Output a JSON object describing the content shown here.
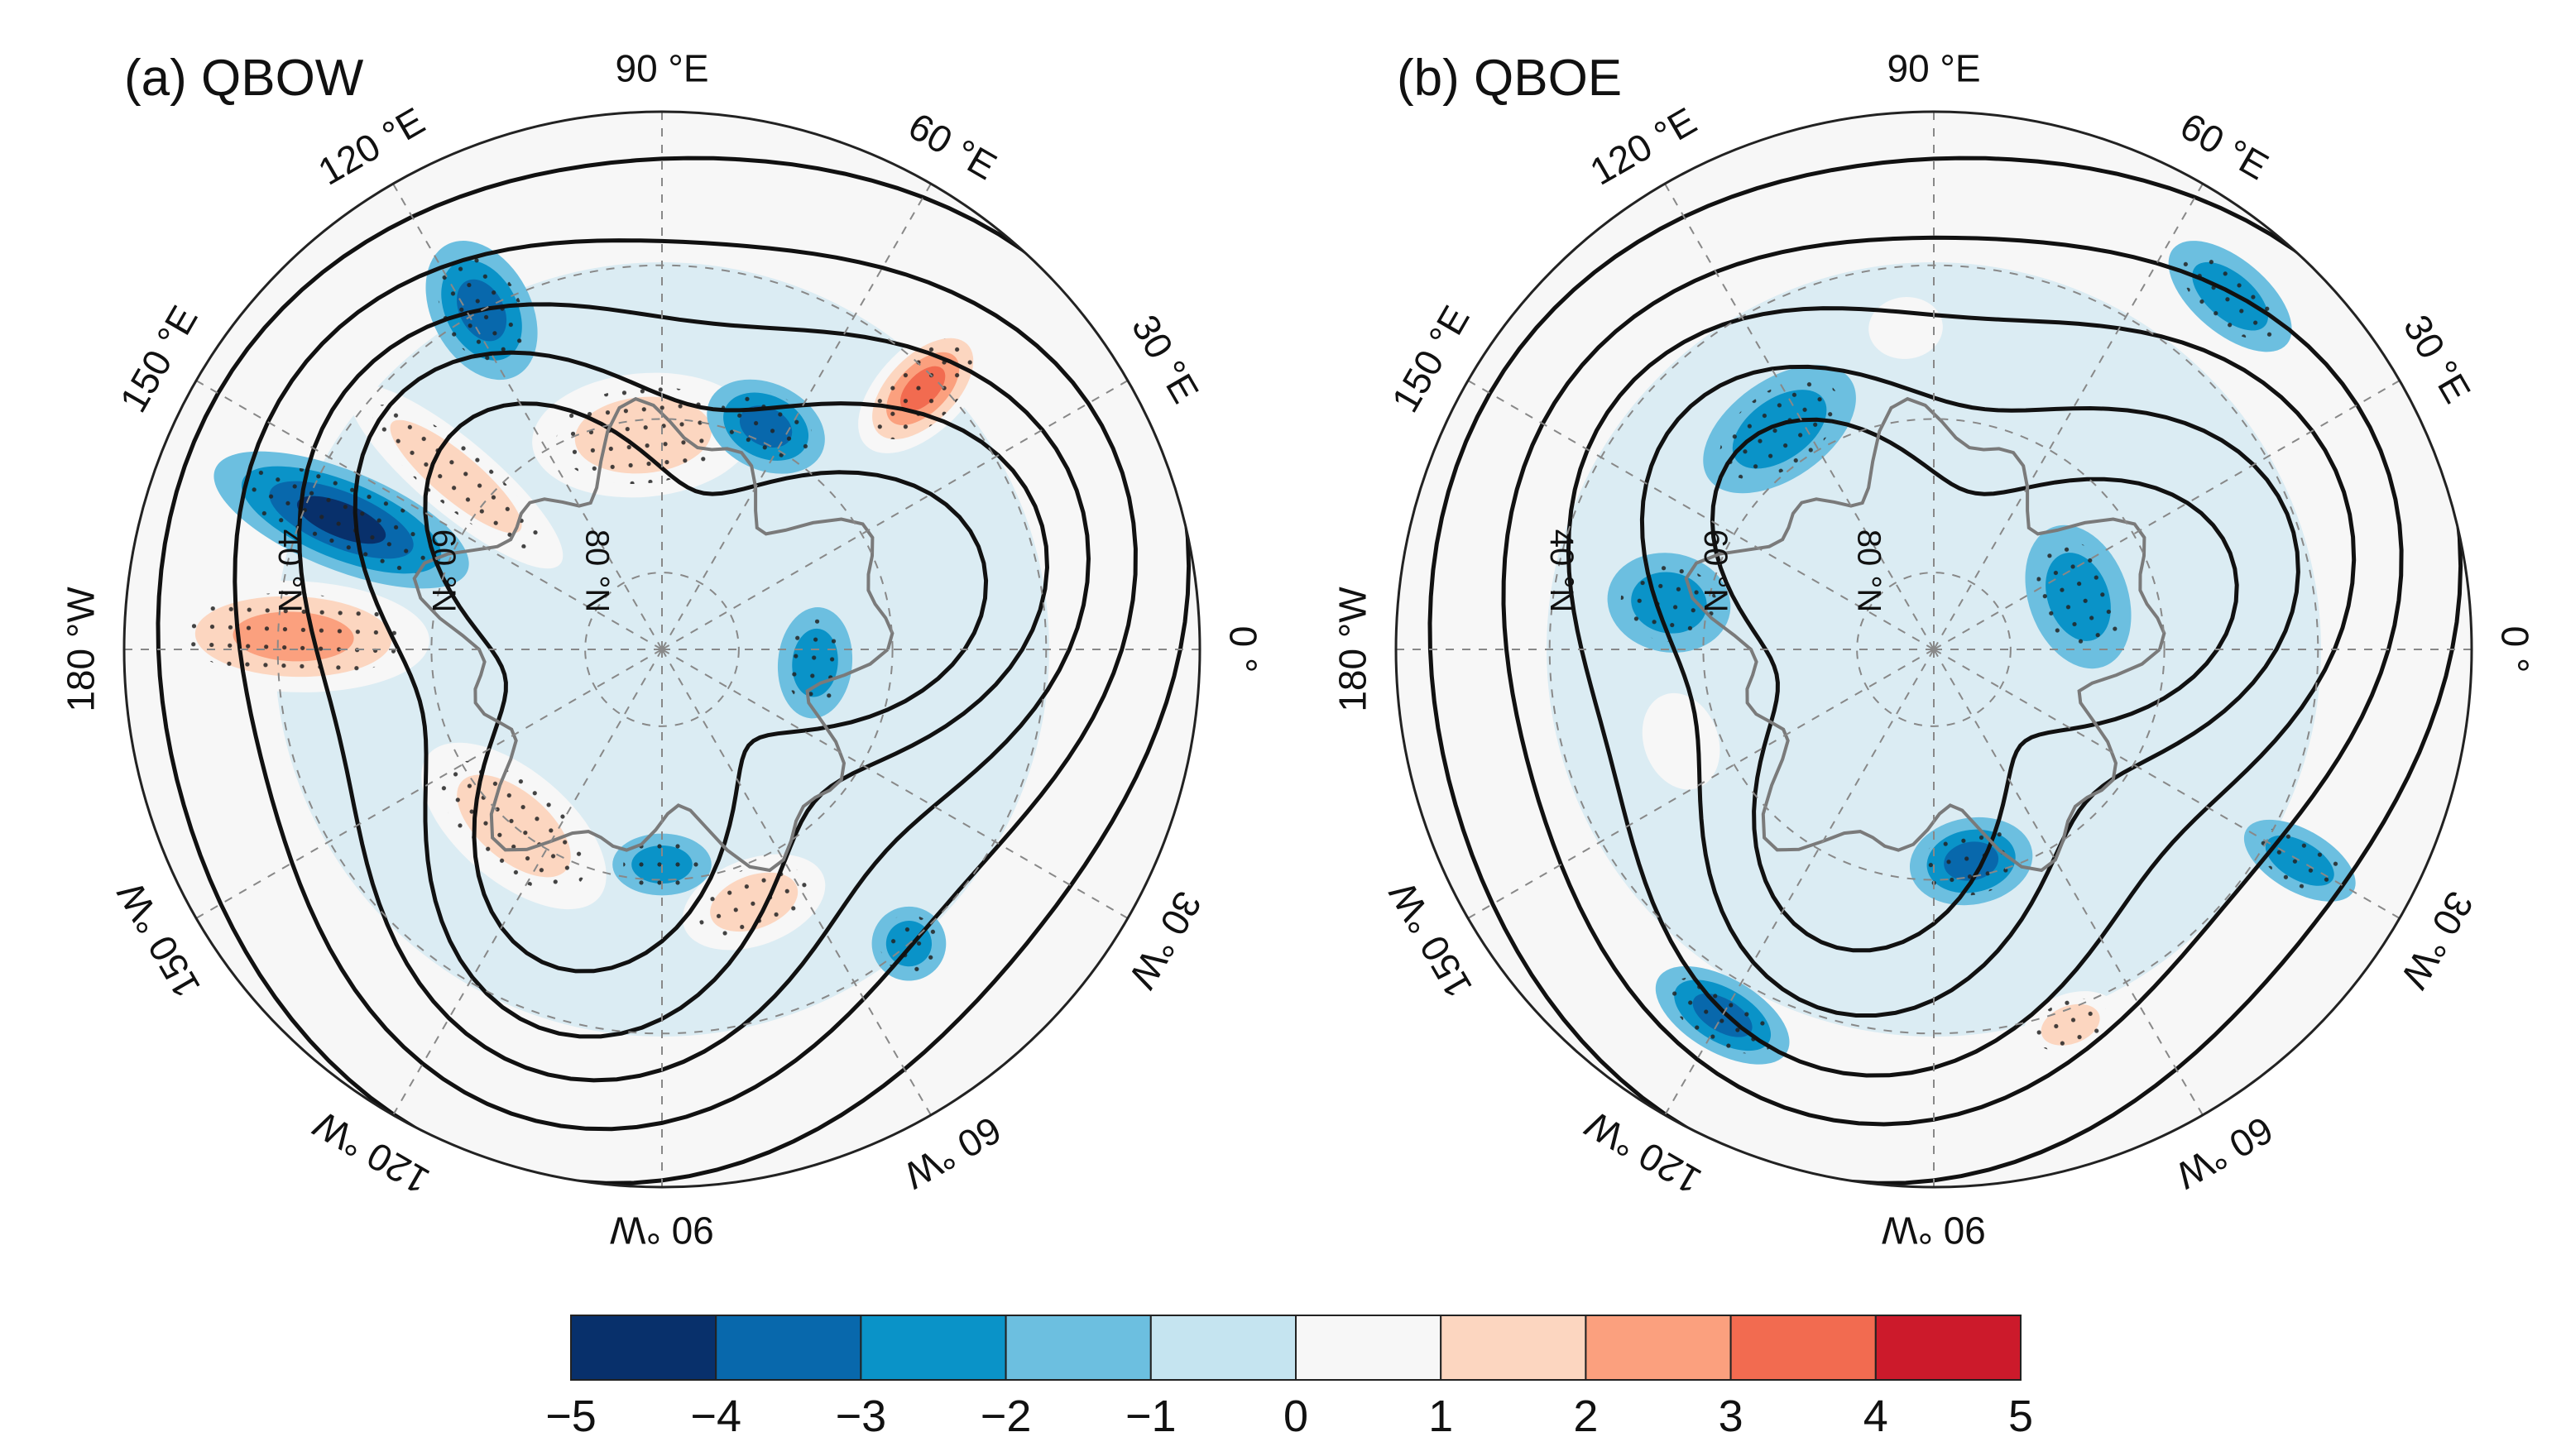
{
  "panels": [
    {
      "title": "(a) QBOW",
      "lon_labels": [
        "90 °E",
        "60 °E",
        "30 °E",
        "0 °",
        "30 °W",
        "60 °W",
        "90 °W",
        "120 °W",
        "150 °W",
        "180 °W",
        "150 °E",
        "120 °E"
      ],
      "lat_labels": [
        "40 °N",
        "60 °N",
        "80 °N"
      ],
      "anomalies": [
        {
          "lon": 178,
          "lat": 42,
          "value": 3,
          "rx": 0.09,
          "ry": 0.22
        },
        {
          "lon": 158,
          "lat": 45,
          "value": -4,
          "rx": 0.08,
          "ry": 0.22
        },
        {
          "lon": 118,
          "lat": 40,
          "value": -3,
          "rx": 0.08,
          "ry": 0.12
        },
        {
          "lon": 140,
          "lat": 55,
          "value": 2,
          "rx": 0.06,
          "ry": 0.22
        },
        {
          "lon": 95,
          "lat": 62,
          "value": 2,
          "rx": 0.18,
          "ry": 0.1
        },
        {
          "lon": 45,
          "lat": 42,
          "value": 4,
          "rx": 0.07,
          "ry": 0.13
        },
        {
          "lon": 65,
          "lat": 58,
          "value": -3,
          "rx": 0.1,
          "ry": 0.07
        },
        {
          "lon": 355,
          "lat": 70,
          "value": -2,
          "rx": 0.09,
          "ry": 0.06
        },
        {
          "lon": 290,
          "lat": 55,
          "value": 2,
          "rx": 0.12,
          "ry": 0.07
        },
        {
          "lon": 230,
          "lat": 60,
          "value": 2,
          "rx": 0.18,
          "ry": 0.09
        },
        {
          "lon": 270,
          "lat": 62,
          "value": -2,
          "rx": 0.08,
          "ry": 0.05
        },
        {
          "lon": 310,
          "lat": 40,
          "value": -2,
          "rx": 0.06,
          "ry": 0.06
        },
        {
          "lon": 100,
          "lat": 30,
          "value": 1,
          "rx": 0.1,
          "ry": 0.08
        }
      ],
      "contours": [
        {
          "a": 0.95,
          "b": 0.04,
          "phase": 20
        },
        {
          "a": 0.82,
          "b": 0.07,
          "phase": 30
        },
        {
          "a": 0.7,
          "b": 0.1,
          "phase": 35
        },
        {
          "a": 0.58,
          "b": 0.14,
          "phase": 40
        },
        {
          "a": 0.44,
          "b": 0.16,
          "phase": 50
        }
      ]
    },
    {
      "title": "(b) QBOE",
      "lon_labels": [
        "90 °E",
        "60 °E",
        "30 °E",
        "0 °",
        "30 °W",
        "60 °W",
        "90 °W",
        "120 °W",
        "150 °W",
        "180 °W",
        "150 °E",
        "120 °E"
      ],
      "lat_labels": [
        "40 °N",
        "60 °N",
        "80 °N"
      ],
      "anomalies": [
        {
          "lon": 50,
          "lat": 30,
          "value": -2,
          "rx": 0.12,
          "ry": 0.06
        },
        {
          "lon": 125,
          "lat": 55,
          "value": -2,
          "rx": 0.14,
          "ry": 0.08
        },
        {
          "lon": 95,
          "lat": 48,
          "value": 1,
          "rx": 0.06,
          "ry": 0.05
        },
        {
          "lon": 20,
          "lat": 70,
          "value": -2,
          "rx": 0.12,
          "ry": 0.08
        },
        {
          "lon": 330,
          "lat": 35,
          "value": -2,
          "rx": 0.05,
          "ry": 0.1
        },
        {
          "lon": 280,
          "lat": 62,
          "value": -3,
          "rx": 0.1,
          "ry": 0.07
        },
        {
          "lon": 240,
          "lat": 35,
          "value": -3,
          "rx": 0.12,
          "ry": 0.06
        },
        {
          "lon": 290,
          "lat": 38,
          "value": 2,
          "rx": 0.08,
          "ry": 0.05
        },
        {
          "lon": 200,
          "lat": 55,
          "value": 1,
          "rx": 0.08,
          "ry": 0.06
        },
        {
          "lon": 170,
          "lat": 55,
          "value": -2,
          "rx": 0.08,
          "ry": 0.1
        }
      ],
      "contours": [
        {
          "a": 0.95,
          "b": 0.04,
          "phase": 20
        },
        {
          "a": 0.82,
          "b": 0.06,
          "phase": 25
        },
        {
          "a": 0.7,
          "b": 0.09,
          "phase": 30
        },
        {
          "a": 0.56,
          "b": 0.12,
          "phase": 40
        },
        {
          "a": 0.42,
          "b": 0.14,
          "phase": 50
        }
      ]
    }
  ],
  "colorbar": {
    "ticks": [
      "−5",
      "−4",
      "−3",
      "−2",
      "−1",
      "0",
      "1",
      "2",
      "3",
      "4",
      "5"
    ],
    "colors": [
      "#08306b",
      "#0868ac",
      "#0a93c8",
      "#6cbfe0",
      "#c5e4f0",
      "#f7f7f7",
      "#fcd6c0",
      "#fba07e",
      "#f26b50",
      "#cc1a2b"
    ]
  }
}
